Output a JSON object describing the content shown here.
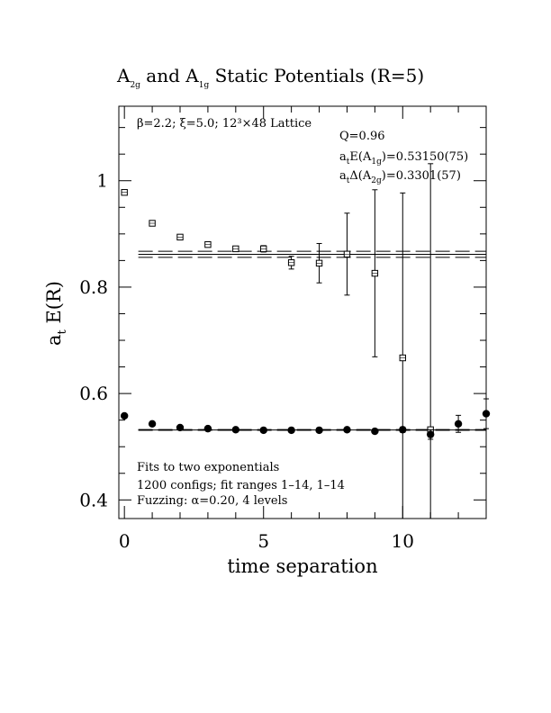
{
  "chart_data": {
    "type": "scatter",
    "title": {
      "main": "A",
      "sub1": "2g",
      "mid": " and A",
      "sub2": "1g",
      "tail": " Static Potentials (R=5)"
    },
    "xlabel": "time separation",
    "ylabel": {
      "base": "a",
      "sub": "t",
      "tail": " E(R)"
    },
    "xlim": [
      -0.2,
      13.0
    ],
    "ylim": [
      0.365,
      1.14
    ],
    "xticks": [
      0,
      5,
      10
    ],
    "xtick_labels": [
      "0",
      "5",
      "10"
    ],
    "yticks": [
      0.4,
      0.6,
      0.8,
      1.0
    ],
    "ytick_labels": [
      "0.4",
      "0.6",
      "0.8",
      "1"
    ],
    "grid": false,
    "annotations": {
      "lattice": "β=2.2; ξ=5.0; 12³×48 Lattice",
      "q": "Q=0.96",
      "e_a1g": {
        "pre": "a",
        "sub1": "t",
        "mid": "E(A",
        "sub2": "1g",
        "post": ")=0.53150(75)"
      },
      "d_a2g": {
        "pre": "a",
        "sub1": "t",
        "mid": "Δ(A",
        "sub2": "2g",
        "post": ")=0.3301(57)"
      },
      "fits": "Fits to two exponentials",
      "configs": "1200 configs; fit ranges 1–14, 1–14",
      "fuzzing": "Fuzzing: α=0.20, 4 levels"
    },
    "fit_lines": {
      "a1g": {
        "center": 0.5315,
        "err": 0.00075,
        "x_range": [
          0.5,
          13.0
        ]
      },
      "a2g": {
        "center": 0.8616,
        "err": 0.0057,
        "x_range": [
          0.5,
          13.0
        ]
      }
    },
    "series": [
      {
        "marker": "square-open",
        "x": [
          0,
          1,
          2,
          3,
          4,
          5,
          6,
          7,
          8,
          9,
          10,
          11
        ],
        "y": [
          0.978,
          0.92,
          0.894,
          0.88,
          0.872,
          0.872,
          0.846,
          0.845,
          0.862,
          0.826,
          0.667,
          0.532
        ],
        "err": [
          0.003,
          0.003,
          0.003,
          0.003,
          0.004,
          0.006,
          0.012,
          0.037,
          0.077,
          0.157,
          0.31,
          0.5
        ]
      },
      {
        "marker": "circle-filled",
        "x": [
          0,
          1,
          2,
          3,
          4,
          5,
          6,
          7,
          8,
          9,
          10,
          11,
          12,
          13
        ],
        "y": [
          0.558,
          0.543,
          0.536,
          0.534,
          0.532,
          0.531,
          0.531,
          0.531,
          0.532,
          0.529,
          0.532,
          0.523,
          0.543,
          0.562
        ],
        "err": [
          0.003,
          0.002,
          0.002,
          0.002,
          0.002,
          0.002,
          0.002,
          0.002,
          0.003,
          0.003,
          0.005,
          0.009,
          0.016,
          0.028
        ]
      }
    ]
  }
}
